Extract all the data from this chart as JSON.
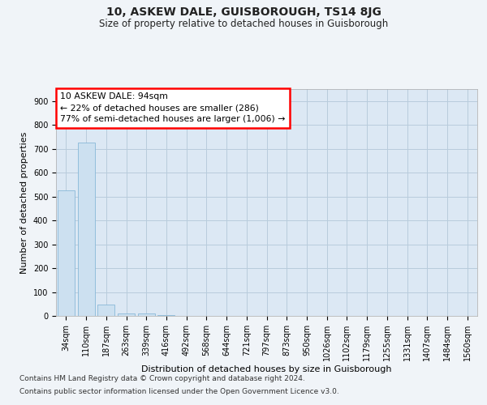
{
  "title1": "10, ASKEW DALE, GUISBOROUGH, TS14 8JG",
  "title2": "Size of property relative to detached houses in Guisborough",
  "xlabel": "Distribution of detached houses by size in Guisborough",
  "ylabel": "Number of detached properties",
  "categories": [
    "34sqm",
    "110sqm",
    "187sqm",
    "263sqm",
    "339sqm",
    "416sqm",
    "492sqm",
    "568sqm",
    "644sqm",
    "721sqm",
    "797sqm",
    "873sqm",
    "950sqm",
    "1026sqm",
    "1102sqm",
    "1179sqm",
    "1255sqm",
    "1331sqm",
    "1407sqm",
    "1484sqm",
    "1560sqm"
  ],
  "values": [
    525,
    725,
    47,
    10,
    10,
    5,
    0,
    0,
    0,
    0,
    0,
    0,
    0,
    0,
    0,
    0,
    0,
    0,
    0,
    0,
    0
  ],
  "bar_color": "#cce0f0",
  "bar_edge_color": "#88b8d8",
  "ylim": [
    0,
    950
  ],
  "yticks": [
    0,
    100,
    200,
    300,
    400,
    500,
    600,
    700,
    800,
    900
  ],
  "annotation_line1": "10 ASKEW DALE: 94sqm",
  "annotation_line2": "← 22% of detached houses are smaller (286)",
  "annotation_line3": "77% of semi-detached houses are larger (1,006) →",
  "footer_line1": "Contains HM Land Registry data © Crown copyright and database right 2024.",
  "footer_line2": "Contains public sector information licensed under the Open Government Licence v3.0.",
  "bg_color": "#f0f4f8",
  "plot_bg_color": "#dce8f4",
  "grid_color": "#b8ccdc",
  "title1_fontsize": 10,
  "title2_fontsize": 8.5,
  "tick_fontsize": 7,
  "ylabel_fontsize": 8,
  "xlabel_fontsize": 8,
  "footer_fontsize": 6.5
}
